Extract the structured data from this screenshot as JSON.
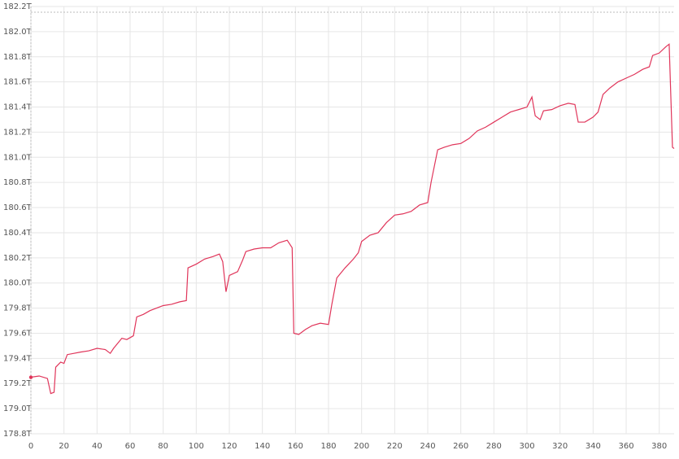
{
  "chart_data": {
    "type": "line",
    "x": [
      0,
      5,
      10,
      12,
      14,
      15,
      18,
      20,
      22,
      26,
      30,
      35,
      40,
      45,
      48,
      50,
      55,
      58,
      62,
      64,
      68,
      72,
      76,
      80,
      85,
      90,
      94,
      95,
      100,
      105,
      110,
      114,
      116,
      118,
      120,
      125,
      128,
      130,
      135,
      140,
      145,
      150,
      155,
      158,
      159,
      162,
      166,
      170,
      175,
      180,
      182,
      185,
      190,
      195,
      198,
      200,
      205,
      210,
      215,
      220,
      225,
      230,
      235,
      240,
      242,
      246,
      250,
      255,
      260,
      265,
      270,
      275,
      280,
      285,
      290,
      295,
      300,
      303,
      305,
      308,
      310,
      315,
      320,
      325,
      329,
      331,
      335,
      340,
      343,
      346,
      350,
      355,
      360,
      365,
      370,
      374,
      376,
      380,
      384,
      386,
      388,
      389
    ],
    "series": [
      {
        "color": "#e0355a",
        "values": [
          179.25,
          179.26,
          179.24,
          179.12,
          179.13,
          179.33,
          179.37,
          179.36,
          179.43,
          179.44,
          179.45,
          179.46,
          179.48,
          179.47,
          179.44,
          179.48,
          179.56,
          179.55,
          179.58,
          179.73,
          179.75,
          179.78,
          179.8,
          179.82,
          179.83,
          179.85,
          179.86,
          180.12,
          180.15,
          180.19,
          180.21,
          180.23,
          180.17,
          179.93,
          180.06,
          180.09,
          180.18,
          180.25,
          180.27,
          180.28,
          180.28,
          180.32,
          180.34,
          180.28,
          179.6,
          179.59,
          179.63,
          179.66,
          179.68,
          179.67,
          179.83,
          180.04,
          180.12,
          180.19,
          180.24,
          180.33,
          180.38,
          180.4,
          180.48,
          180.54,
          180.55,
          180.57,
          180.62,
          180.64,
          180.8,
          181.06,
          181.08,
          181.1,
          181.11,
          181.15,
          181.21,
          181.24,
          181.28,
          181.32,
          181.36,
          181.38,
          181.4,
          181.48,
          181.33,
          181.3,
          181.37,
          181.38,
          181.41,
          181.43,
          181.42,
          181.28,
          181.28,
          181.32,
          181.36,
          181.5,
          181.55,
          181.6,
          181.63,
          181.66,
          181.7,
          181.72,
          181.81,
          181.83,
          181.88,
          181.9,
          181.08,
          181.07
        ]
      }
    ],
    "xlim": [
      0,
      389
    ],
    "ylim": [
      178.8,
      182.2
    ],
    "xticks": [
      0,
      20,
      40,
      60,
      80,
      100,
      120,
      140,
      160,
      180,
      200,
      220,
      240,
      260,
      280,
      300,
      320,
      340,
      360,
      380
    ],
    "yticks": [
      {
        "value": 178.8,
        "label": "178.8T"
      },
      {
        "value": 179.0,
        "label": "179.0T"
      },
      {
        "value": 179.2,
        "label": "179.2T"
      },
      {
        "value": 179.4,
        "label": "179.4T"
      },
      {
        "value": 179.6,
        "label": "179.6T"
      },
      {
        "value": 179.8,
        "label": "179.8T"
      },
      {
        "value": 180.0,
        "label": "180.0T"
      },
      {
        "value": 180.2,
        "label": "180.2T"
      },
      {
        "value": 180.4,
        "label": "180.4T"
      },
      {
        "value": 180.6,
        "label": "180.6T"
      },
      {
        "value": 180.8,
        "label": "180.8T"
      },
      {
        "value": 181.0,
        "label": "181.0T"
      },
      {
        "value": 181.2,
        "label": "181.2T"
      },
      {
        "value": 181.4,
        "label": "181.4T"
      },
      {
        "value": 181.6,
        "label": "181.6T"
      },
      {
        "value": 181.8,
        "label": "181.8T"
      },
      {
        "value": 182.0,
        "label": "182.0T"
      },
      {
        "value": 182.2,
        "label": "182.2T"
      }
    ],
    "grid": true
  }
}
